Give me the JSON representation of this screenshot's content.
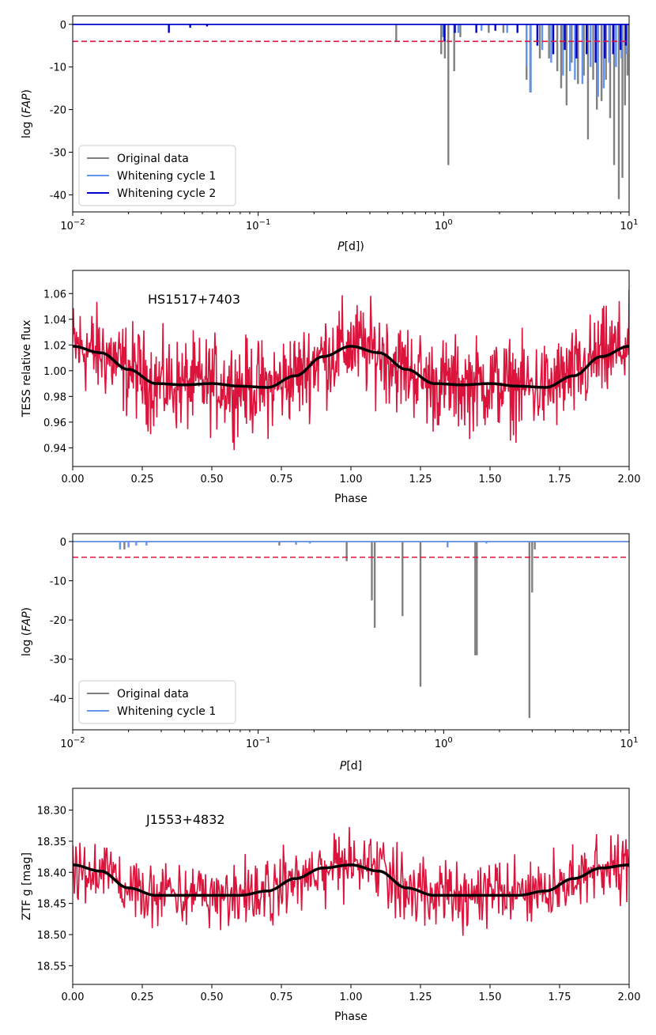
{
  "colors": {
    "original": "#808080",
    "whiten1": "#6495ed",
    "whiten2": "#0000cd",
    "threshold": "#dc143c",
    "lightcurve": "#dc143c",
    "model": "#000000"
  },
  "chart_data": [
    {
      "type": "line",
      "xscale": "log",
      "xlim": [
        0.01,
        10
      ],
      "ylim": [
        -44,
        2
      ],
      "xlabel": "P[d])",
      "ylabel": "log (FAP)",
      "xticks": [
        {
          "value": 0.01,
          "label": "10−2"
        },
        {
          "value": 0.1,
          "label": "10−1"
        },
        {
          "value": 1,
          "label": "100"
        },
        {
          "value": 10,
          "label": "101"
        }
      ],
      "yticks": [
        0,
        -10,
        -20,
        -30,
        -40
      ],
      "threshold": -4,
      "legend": {
        "placement": "lower-left"
      },
      "series": [
        {
          "name": "Original data",
          "color_key": "original",
          "baseline": 0,
          "dips": [
            [
              0.555,
              -4
            ],
            [
              0.97,
              -7
            ],
            [
              1.015,
              -8
            ],
            [
              1.06,
              -33
            ],
            [
              1.14,
              -11
            ],
            [
              1.23,
              -3
            ],
            [
              1.75,
              -2
            ],
            [
              2.1,
              -2
            ],
            [
              2.8,
              -13
            ],
            [
              2.93,
              -16
            ],
            [
              3.3,
              -8
            ],
            [
              3.7,
              -8
            ],
            [
              4.1,
              -11
            ],
            [
              4.3,
              -15
            ],
            [
              4.6,
              -19
            ],
            [
              4.9,
              -9
            ],
            [
              5.3,
              -14
            ],
            [
              5.7,
              -12
            ],
            [
              6.0,
              -27
            ],
            [
              6.4,
              -13
            ],
            [
              6.7,
              -20
            ],
            [
              7.1,
              -18
            ],
            [
              7.5,
              -13
            ],
            [
              7.9,
              -22
            ],
            [
              8.3,
              -33
            ],
            [
              8.8,
              -41
            ],
            [
              9.2,
              -36
            ],
            [
              9.5,
              -19
            ],
            [
              9.8,
              -12
            ]
          ]
        },
        {
          "name": "Whitening cycle 1",
          "color_key": "whiten1",
          "baseline": 0,
          "dips": [
            [
              0.99,
              -3
            ],
            [
              1.2,
              -2
            ],
            [
              1.6,
              -1.5
            ],
            [
              2.2,
              -2
            ],
            [
              2.8,
              -10
            ],
            [
              2.95,
              -16
            ],
            [
              3.4,
              -6
            ],
            [
              3.8,
              -9
            ],
            [
              4.4,
              -12
            ],
            [
              4.8,
              -11
            ],
            [
              5.1,
              -13
            ],
            [
              5.6,
              -14
            ],
            [
              6.2,
              -10
            ],
            [
              6.8,
              -17
            ],
            [
              7.3,
              -15
            ],
            [
              7.8,
              -9
            ],
            [
              8.5,
              -10
            ],
            [
              9.1,
              -8
            ],
            [
              9.7,
              -7
            ]
          ]
        },
        {
          "name": "Whitening cycle 2",
          "color_key": "whiten2",
          "baseline": 0,
          "dips": [
            [
              0.033,
              -2
            ],
            [
              0.043,
              -0.8
            ],
            [
              0.053,
              -0.5
            ],
            [
              1.01,
              -4
            ],
            [
              1.15,
              -2
            ],
            [
              1.5,
              -2
            ],
            [
              1.9,
              -1.5
            ],
            [
              2.5,
              -2
            ],
            [
              3.2,
              -5
            ],
            [
              3.9,
              -7
            ],
            [
              4.5,
              -6
            ],
            [
              5.2,
              -8
            ],
            [
              5.9,
              -7
            ],
            [
              6.6,
              -9
            ],
            [
              7.4,
              -8
            ],
            [
              8.2,
              -7
            ],
            [
              9.0,
              -6
            ],
            [
              9.6,
              -5
            ]
          ]
        }
      ]
    },
    {
      "type": "line",
      "xlim": [
        0,
        2
      ],
      "ylim": [
        0.9255,
        1.078
      ],
      "xlabel": "Phase",
      "ylabel": "TESS relative flux",
      "annotation": "HS1517+7403",
      "xticks": [
        0,
        0.25,
        0.5,
        0.75,
        1.0,
        1.25,
        1.5,
        1.75,
        2.0
      ],
      "xticklabels": [
        "0.00",
        "0.25",
        "0.50",
        "0.75",
        "1.00",
        "1.25",
        "1.50",
        "1.75",
        "2.00"
      ],
      "yticks": [
        0.94,
        0.96,
        0.98,
        1.0,
        1.02,
        1.04,
        1.06
      ],
      "yticklabels": [
        "0.94",
        "0.96",
        "0.98",
        "1.00",
        "1.02",
        "1.04",
        "1.06"
      ],
      "series": [
        {
          "color_key": "lightcurve",
          "n_points": 900,
          "scatter": 0.037
        },
        {
          "color_key": "model",
          "x": [
            0,
            0.1,
            0.2,
            0.3,
            0.4,
            0.5,
            0.6,
            0.7,
            0.8,
            0.9,
            1.0,
            1.1,
            1.2,
            1.3,
            1.4,
            1.5,
            1.6,
            1.7,
            1.8,
            1.9,
            2.0
          ],
          "y": [
            1.019,
            1.014,
            1.001,
            0.99,
            0.989,
            0.99,
            0.988,
            0.987,
            0.996,
            1.011,
            1.019,
            1.014,
            1.001,
            0.99,
            0.989,
            0.99,
            0.988,
            0.987,
            0.996,
            1.011,
            1.019
          ]
        }
      ]
    },
    {
      "type": "line",
      "xscale": "log",
      "xlim": [
        0.01,
        10
      ],
      "ylim": [
        -48,
        2
      ],
      "xlabel": "P[d]",
      "ylabel": "log (FAP)",
      "xticks": [
        {
          "value": 0.01,
          "label": "10−2"
        },
        {
          "value": 0.1,
          "label": "10−1"
        },
        {
          "value": 1,
          "label": "100"
        },
        {
          "value": 10,
          "label": "101"
        }
      ],
      "yticks": [
        0,
        -10,
        -20,
        -30,
        -40
      ],
      "threshold": -4,
      "legend": {
        "placement": "lower-left"
      },
      "series": [
        {
          "name": "Original data",
          "color_key": "original",
          "baseline": 0,
          "dips": [
            [
              0.019,
              -2
            ],
            [
              0.13,
              -1
            ],
            [
              0.3,
              -5
            ],
            [
              0.41,
              -15
            ],
            [
              0.425,
              -22
            ],
            [
              0.6,
              -19
            ],
            [
              0.75,
              -37
            ],
            [
              1.48,
              -29
            ],
            [
              1.51,
              -29
            ],
            [
              2.9,
              -45
            ],
            [
              3.0,
              -13
            ],
            [
              3.1,
              -2
            ]
          ]
        },
        {
          "name": "Whitening cycle 1",
          "color_key": "whiten1",
          "baseline": 0,
          "dips": [
            [
              0.018,
              -2
            ],
            [
              0.02,
              -1.5
            ],
            [
              0.022,
              -1
            ],
            [
              0.025,
              -1
            ],
            [
              0.16,
              -0.8
            ],
            [
              0.19,
              -0.5
            ],
            [
              1.05,
              -1.5
            ],
            [
              1.7,
              -0.5
            ]
          ]
        }
      ]
    },
    {
      "type": "line",
      "xlim": [
        0,
        2
      ],
      "ylim": [
        18.58,
        18.265
      ],
      "xlabel": "Phase",
      "ylabel": "ZTF g [mag]",
      "annotation": "J1553+4832",
      "xticks": [
        0,
        0.25,
        0.5,
        0.75,
        1.0,
        1.25,
        1.5,
        1.75,
        2.0
      ],
      "xticklabels": [
        "0.00",
        "0.25",
        "0.50",
        "0.75",
        "1.00",
        "1.25",
        "1.50",
        "1.75",
        "2.00"
      ],
      "yticks": [
        18.3,
        18.35,
        18.4,
        18.45,
        18.5,
        18.55
      ],
      "yticklabels": [
        "18.30",
        "18.35",
        "18.40",
        "18.45",
        "18.50",
        "18.55"
      ],
      "series": [
        {
          "color_key": "lightcurve",
          "n_points": 700,
          "scatter": 0.055
        },
        {
          "color_key": "model",
          "x": [
            0,
            0.1,
            0.2,
            0.3,
            0.4,
            0.5,
            0.6,
            0.7,
            0.8,
            0.9,
            1.0,
            1.1,
            1.2,
            1.3,
            1.4,
            1.5,
            1.6,
            1.7,
            1.8,
            1.9,
            2.0
          ],
          "y": [
            18.388,
            18.398,
            18.425,
            18.437,
            18.437,
            18.437,
            18.437,
            18.43,
            18.41,
            18.393,
            18.388,
            18.398,
            18.425,
            18.437,
            18.437,
            18.437,
            18.437,
            18.43,
            18.41,
            18.393,
            18.388
          ]
        }
      ]
    }
  ]
}
